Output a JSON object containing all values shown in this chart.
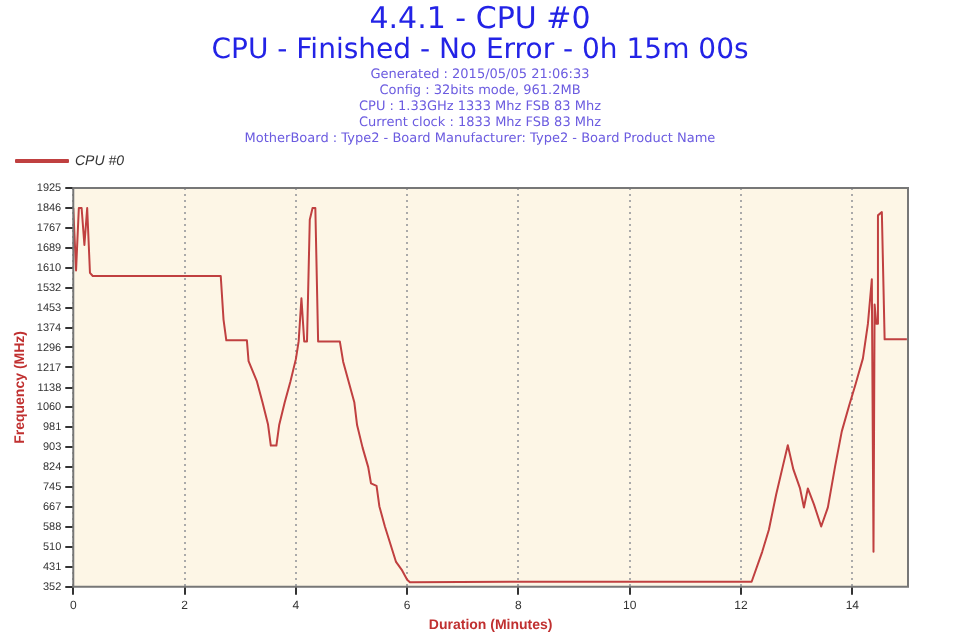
{
  "chart_data": {
    "type": "line",
    "title": "4.4.1 - CPU #0",
    "subtitle": "CPU - Finished - No Error - 0h 15m 00s",
    "annotations": [
      "Generated : 2015/05/05 21:06:33",
      "Config : 32bits mode, 961.2MB",
      "CPU : 1.33GHz 1333 Mhz FSB 83 Mhz",
      "Current clock : 1833 Mhz FSB 83 Mhz",
      "MotherBoard : Type2 - Board Manufacturer: Type2 - Board Product Name"
    ],
    "xlabel": "Duration (Minutes)",
    "ylabel": "Frequency (MHz)",
    "x": [
      0,
      0.05,
      0.1,
      0.15,
      0.2,
      0.25,
      0.3,
      0.35,
      2.65,
      2.7,
      2.75,
      3.12,
      3.15,
      3.3,
      3.4,
      3.5,
      3.55,
      3.65,
      3.7,
      3.8,
      3.9,
      4.0,
      4.05,
      4.1,
      4.15,
      4.2,
      4.25,
      4.3,
      4.35,
      4.4,
      4.79,
      4.85,
      4.95,
      5.05,
      5.1,
      5.2,
      5.3,
      5.35,
      5.45,
      5.5,
      5.6,
      5.7,
      5.8,
      5.9,
      6.0,
      6.05,
      8,
      10,
      12.19,
      12.38,
      12.5,
      12.63,
      12.75,
      12.84,
      12.94,
      13.06,
      13.13,
      13.2,
      13.31,
      13.44,
      13.56,
      13.69,
      13.81,
      13.94,
      14.06,
      14.19,
      14.28,
      14.35,
      14.38,
      14.4,
      14.43,
      14.46,
      14.53,
      14.58,
      14.98
    ],
    "series": [
      {
        "name": "CPU #0",
        "color": "#c04040",
        "values": [
          1846,
          1600,
          1846,
          1846,
          1700,
          1846,
          1590,
          1578,
          1578,
          1406,
          1324,
          1324,
          1242,
          1162,
          1080,
          992,
          909,
          909,
          990,
          1080,
          1160,
          1250,
          1320,
          1490,
          1320,
          1320,
          1800,
          1846,
          1846,
          1320,
          1320,
          1240,
          1160,
          1080,
          990,
          900,
          824,
          760,
          750,
          670,
          590,
          520,
          450,
          420,
          380,
          370,
          372,
          372,
          372,
          490,
          577,
          715,
          827,
          910,
          815,
          740,
          665,
          740,
          677,
          590,
          665,
          827,
          965,
          1065,
          1153,
          1253,
          1390,
          1565,
          490,
          1465,
          1390,
          1817,
          1830,
          1328,
          1328
        ]
      }
    ],
    "xlim": [
      0,
      15
    ],
    "xticks": [
      0,
      2,
      4,
      6,
      8,
      10,
      12,
      14
    ],
    "ylim": [
      352,
      1925
    ],
    "yticks": [
      352,
      431,
      510,
      588,
      667,
      745,
      824,
      903,
      981,
      1060,
      1138,
      1217,
      1296,
      1374,
      1453,
      1532,
      1610,
      1689,
      1767,
      1846,
      1925
    ],
    "grid": "x",
    "legend": "top left",
    "marker": "none",
    "line_style": "solid"
  }
}
